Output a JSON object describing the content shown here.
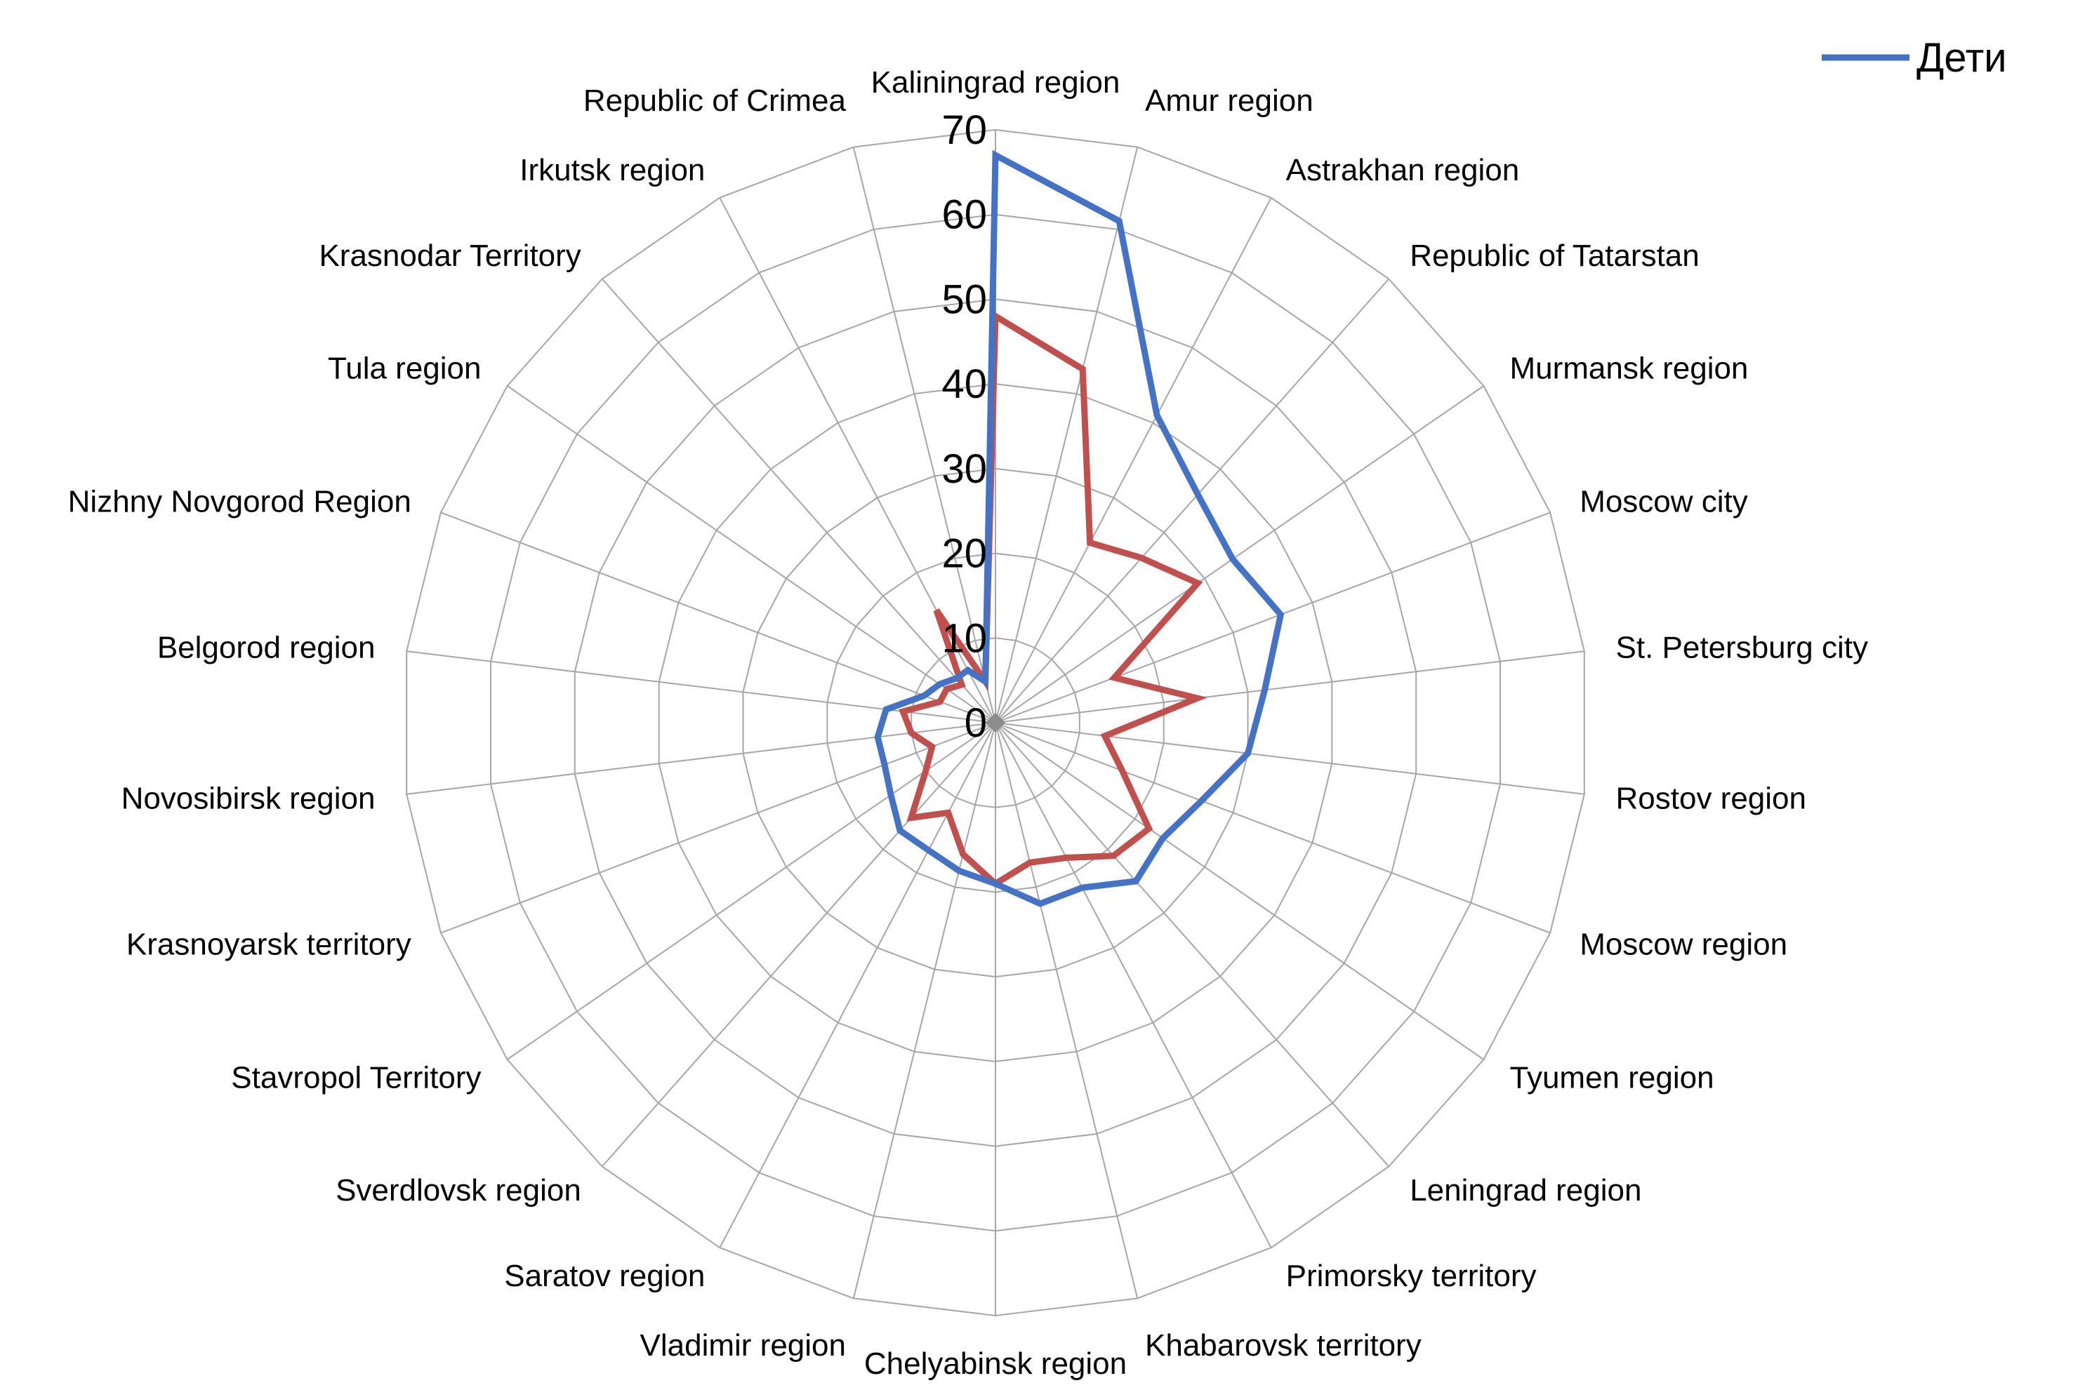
{
  "chart_data": {
    "type": "radar",
    "categories": [
      "Kaliningrad region",
      "Amur region",
      "Astrakhan region",
      "Republic of Tatarstan",
      "Murmansk region",
      "Moscow city",
      "St. Petersburg city",
      "Rostov region",
      "Moscow region",
      "Tyumen region",
      "Leningrad region",
      "Primorsky territory",
      "Khabarovsk territory",
      "Chelyabinsk region",
      "Vladimir region",
      "Saratov region",
      "Sverdlovsk region",
      "Stavropol Territory",
      "Krasnoyarsk territory",
      "Novosibirsk region",
      "Belgorod region",
      "Nizhny Novgorod Region",
      "Tula region",
      "Krasnodar Territory",
      "Irkutsk region",
      "Republic of Crimea"
    ],
    "series": [
      {
        "name": "Дети",
        "color": "#4472C4",
        "values": [
          67,
          61,
          41,
          36,
          34,
          36,
          32,
          30,
          26,
          24,
          25,
          22,
          22,
          19,
          18,
          17,
          17,
          15,
          14,
          14,
          13,
          9,
          8,
          7,
          7,
          5
        ]
      },
      {
        "name": "",
        "color": "#C0504D",
        "values": [
          48,
          43,
          24,
          26,
          29,
          15,
          24,
          13,
          16,
          22,
          21,
          18,
          17,
          19,
          16,
          12,
          15,
          10,
          8,
          10,
          11,
          7,
          7,
          6,
          15,
          5
        ]
      }
    ],
    "r_ticks": [
      "0",
      "10",
      "20",
      "30",
      "40",
      "50",
      "60",
      "70"
    ],
    "rlim": [
      0,
      70
    ],
    "grid": true,
    "legend": {
      "position": "top-right",
      "entries": [
        "Дети"
      ]
    }
  }
}
